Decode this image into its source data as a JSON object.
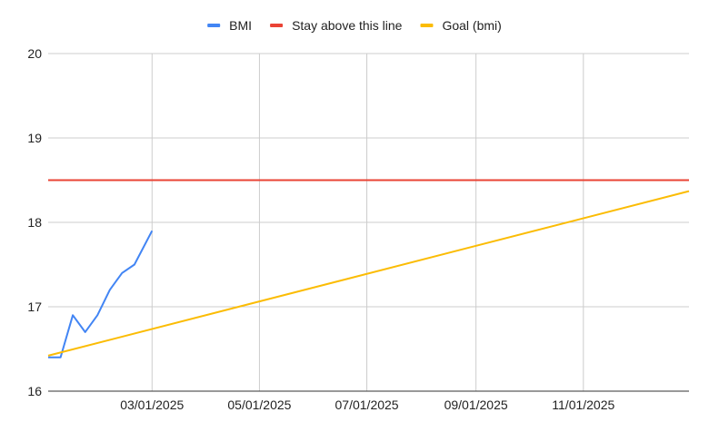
{
  "chart_data": {
    "type": "line",
    "title": "",
    "xlabel": "",
    "ylabel": "",
    "x_range": [
      "2025-01-01",
      "2025-12-31"
    ],
    "ylim": [
      16,
      20
    ],
    "y_ticks": [
      16,
      17,
      18,
      19,
      20
    ],
    "x_ticks": [
      {
        "date": "2025-03-01",
        "label": "03/01/2025"
      },
      {
        "date": "2025-05-01",
        "label": "05/01/2025"
      },
      {
        "date": "2025-07-01",
        "label": "07/01/2025"
      },
      {
        "date": "2025-09-01",
        "label": "09/01/2025"
      },
      {
        "date": "2025-11-01",
        "label": "11/01/2025"
      }
    ],
    "grid": {
      "horizontal": true,
      "vertical": true
    },
    "legend_position": "top-center",
    "series": [
      {
        "name": "BMI",
        "color": "#4285f4",
        "points": [
          {
            "x": "2025-01-01",
            "y": 16.4
          },
          {
            "x": "2025-01-08",
            "y": 16.4
          },
          {
            "x": "2025-01-15",
            "y": 16.9
          },
          {
            "x": "2025-01-22",
            "y": 16.7
          },
          {
            "x": "2025-01-29",
            "y": 16.9
          },
          {
            "x": "2025-02-05",
            "y": 17.2
          },
          {
            "x": "2025-02-12",
            "y": 17.4
          },
          {
            "x": "2025-02-19",
            "y": 17.5
          },
          {
            "x": "2025-03-01",
            "y": 17.9
          }
        ]
      },
      {
        "name": "Stay above this line",
        "color": "#ea4335",
        "points": [
          {
            "x": "2025-01-01",
            "y": 18.5
          },
          {
            "x": "2025-12-31",
            "y": 18.5
          }
        ]
      },
      {
        "name": "Goal (bmi)",
        "color": "#fbbc04",
        "points": [
          {
            "x": "2025-01-01",
            "y": 16.42
          },
          {
            "x": "2025-12-31",
            "y": 18.37
          }
        ]
      }
    ]
  }
}
